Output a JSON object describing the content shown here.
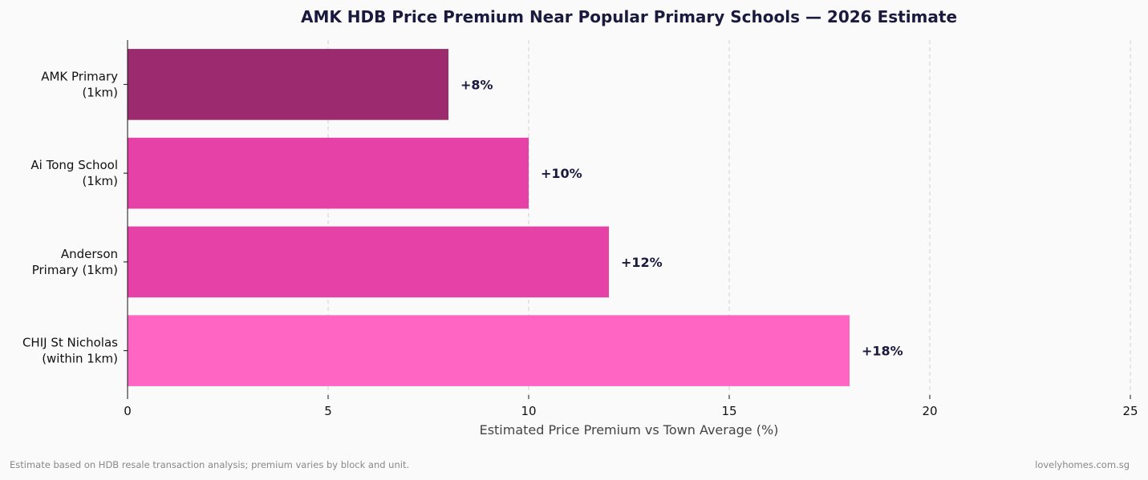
{
  "chart_data": {
    "type": "bar",
    "orientation": "horizontal",
    "title": "AMK HDB Price Premium Near Popular Primary Schools — 2026 Estimate",
    "xlabel": "Estimated Price Premium vs Town Average (%)",
    "ylabel": "",
    "categories": [
      [
        "AMK Primary",
        "(1km)"
      ],
      [
        "Ai Tong School",
        "(1km)"
      ],
      [
        "Anderson",
        "Primary (1km)"
      ],
      [
        "CHIJ St Nicholas",
        "(within 1km)"
      ]
    ],
    "values": [
      8,
      10,
      12,
      18
    ],
    "data_labels": [
      "+8%",
      "+10%",
      "+12%",
      "+18%"
    ],
    "colors": [
      "#9b2a6e",
      "#e641a7",
      "#e641a7",
      "#ff66c4"
    ],
    "xlim": [
      0,
      25
    ],
    "xticks": [
      0,
      5,
      10,
      15,
      20,
      25
    ],
    "grid": "x-dashed",
    "legend": "none"
  },
  "footer": {
    "note": "Estimate based on HDB resale transaction analysis; premium varies by block and unit.",
    "source": "lovelyhomes.com.sg"
  }
}
